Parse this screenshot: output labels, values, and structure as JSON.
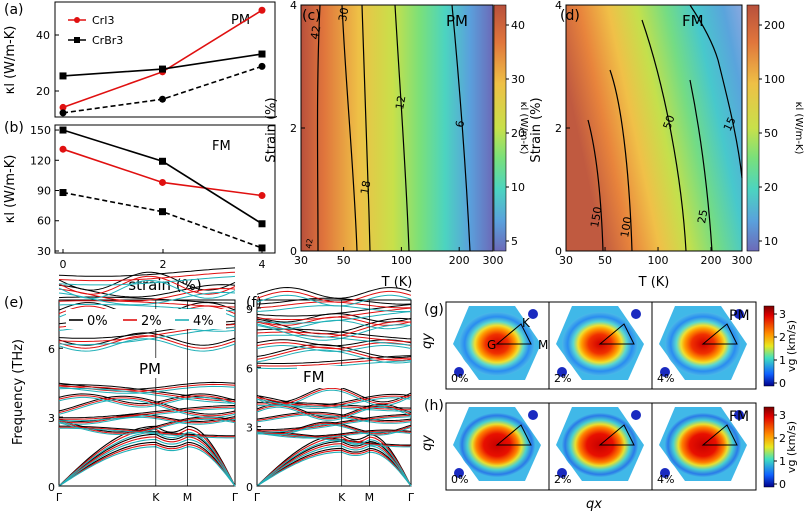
{
  "chart_data": [
    {
      "id": "a",
      "panel_label": "(a)",
      "type": "line",
      "corner_label": "PM",
      "ylabel": "κl (W/m-K)",
      "x": [
        0,
        2,
        4
      ],
      "ytick_labels": [
        "20",
        "40"
      ],
      "ylim": [
        8,
        50
      ],
      "legend": [
        "CrI3",
        "CrBr3"
      ],
      "series": [
        {
          "name": "CrI3",
          "color": "#e01010",
          "dash": false,
          "marker": "circle",
          "values": [
            11.5,
            24.5,
            47
          ]
        },
        {
          "name": "CrBr3",
          "color": "#000000",
          "dash": false,
          "marker": "square",
          "values": [
            23.0,
            25.5,
            31
          ]
        },
        {
          "name": "CrBr3 (dashed)",
          "color": "#000000",
          "dash": true,
          "marker": "circle",
          "values": [
            9.5,
            14.5,
            26.5
          ]
        }
      ]
    },
    {
      "id": "b",
      "panel_label": "(b)",
      "type": "line",
      "corner_label": "FM",
      "ylabel": "κl (W/m-K)",
      "xlabel": "strain (%)",
      "x": [
        0,
        2,
        4
      ],
      "xtick_labels": [
        "0",
        "2",
        "4"
      ],
      "ytick_labels": [
        "30",
        "60",
        "90",
        "120",
        "150"
      ],
      "ylim": [
        28,
        155
      ],
      "series": [
        {
          "name": "CrI3",
          "color": "#e01010",
          "dash": false,
          "marker": "circle",
          "values": [
            131,
            98,
            85
          ]
        },
        {
          "name": "CrBr3",
          "color": "#000000",
          "dash": false,
          "marker": "square",
          "values": [
            150,
            119,
            57
          ]
        },
        {
          "name": "CrBr3 (dashed)",
          "color": "#000000",
          "dash": true,
          "marker": "square",
          "values": [
            88,
            69,
            33
          ]
        }
      ]
    },
    {
      "id": "c",
      "panel_label": "(c)",
      "type": "heatmap",
      "corner_label": "PM",
      "xlabel": "T (K)",
      "ylabel": "Strain (%)",
      "xtick_labels": [
        "30",
        "50",
        "100",
        "200",
        "300"
      ],
      "ytick_labels": [
        "0",
        "2",
        "4"
      ],
      "contour_labels": [
        "42",
        "30",
        "12",
        "6",
        "18",
        "42"
      ],
      "colorbar_label": "κl (W/m-K)",
      "colorbar_ticks": [
        "40",
        "30",
        "20",
        "10",
        "5"
      ]
    },
    {
      "id": "d",
      "panel_label": "(d)",
      "type": "heatmap",
      "corner_label": "FM",
      "xlabel": "T (K)",
      "ylabel": "Strain (%)",
      "xtick_labels": [
        "30",
        "50",
        "100",
        "200",
        "300"
      ],
      "ytick_labels": [
        "0",
        "2",
        "4"
      ],
      "contour_labels": [
        "150",
        "100",
        "50",
        "25",
        "15"
      ],
      "colorbar_label": "κl (W/m-K)",
      "colorbar_ticks": [
        "200",
        "100",
        "50",
        "20",
        "10"
      ]
    },
    {
      "id": "e",
      "panel_label": "(e)",
      "type": "line",
      "corner_label": "PM",
      "ylabel": "Frequency (THz)",
      "ytick_labels": [
        "0",
        "3",
        "6"
      ],
      "xtick_labels": [
        "Γ",
        "K",
        "M",
        "Γ"
      ],
      "legend": [
        "0%",
        "2%",
        "4%"
      ],
      "legend_colors": [
        "#000000",
        "#e01010",
        "#20b0b8"
      ]
    },
    {
      "id": "f",
      "panel_label": "(f)",
      "type": "line",
      "corner_label": "FM",
      "ytick_labels": [
        "0",
        "3",
        "6",
        "9"
      ],
      "xtick_labels": [
        "Γ",
        "K",
        "M",
        "Γ"
      ]
    },
    {
      "id": "g",
      "panel_label": "(g)",
      "type": "heatmap",
      "corner_label": "PM",
      "ylabel": "qy",
      "maps": [
        "0%",
        "2%",
        "4%"
      ],
      "point_labels": [
        "K",
        "G",
        "M"
      ],
      "colorbar_label": "vg (km/s)",
      "colorbar_ticks": [
        "3",
        "2",
        "1",
        "0"
      ]
    },
    {
      "id": "h",
      "panel_label": "(h)",
      "type": "heatmap",
      "corner_label": "FM",
      "ylabel": "qy",
      "xlabel": "qx",
      "maps": [
        "0%",
        "2%",
        "4%"
      ],
      "colorbar_label": "vg (km/s)",
      "colorbar_ticks": [
        "3",
        "2",
        "1",
        "0"
      ]
    }
  ]
}
